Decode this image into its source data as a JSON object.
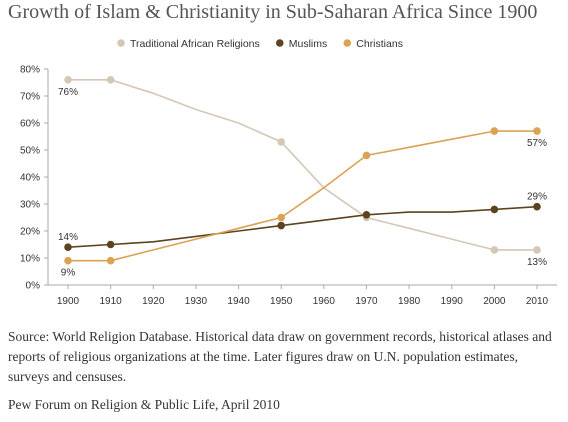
{
  "title": "Growth of Islam & Christianity in Sub-Saharan Africa Since 1900",
  "source": "Source: World Religion Database. Historical data draw on government records, historical atlases and reports of religious organizations at the time. Later figures draw on U.N. population estimates, surveys and censuses.",
  "credit": "Pew Forum on Religion & Public Life, April 2010",
  "chart_data": {
    "type": "line",
    "title": "Growth of Islam & Christianity in Sub-Saharan Africa Since 1900",
    "xlabel": "",
    "ylabel": "",
    "x_ticks": [
      "1900",
      "1910",
      "1920",
      "1930",
      "1940",
      "1950",
      "1960",
      "1970",
      "1980",
      "1990",
      "2000",
      "2010"
    ],
    "y_ticks": [
      "0%",
      "10%",
      "20%",
      "30%",
      "40%",
      "50%",
      "60%",
      "70%",
      "80%"
    ],
    "xlim": [
      1900,
      2010
    ],
    "ylim": [
      0,
      80
    ],
    "grid": false,
    "legend_position": "top-center",
    "series": [
      {
        "name": "Traditional African Religions",
        "color": "#d4c7b6",
        "x": [
          1900,
          1910,
          1920,
          1930,
          1940,
          1950,
          1960,
          1970,
          1980,
          1990,
          2000,
          2010
        ],
        "values": [
          76,
          76,
          71,
          65,
          60,
          53,
          36,
          25,
          21,
          17,
          13,
          13
        ],
        "markers": [
          1900,
          1910,
          1950,
          1970,
          2000,
          2010
        ]
      },
      {
        "name": "Muslims",
        "color": "#5e4320",
        "x": [
          1900,
          1910,
          1920,
          1930,
          1940,
          1950,
          1960,
          1970,
          1980,
          1990,
          2000,
          2010
        ],
        "values": [
          14,
          15,
          16,
          18,
          20,
          22,
          24,
          26,
          27,
          27,
          28,
          29
        ],
        "markers": [
          1900,
          1910,
          1950,
          1970,
          2000,
          2010
        ]
      },
      {
        "name": "Christians",
        "color": "#dba253",
        "x": [
          1900,
          1910,
          1920,
          1930,
          1940,
          1950,
          1960,
          1970,
          1980,
          1990,
          2000,
          2010
        ],
        "values": [
          9,
          9,
          13,
          17,
          21,
          25,
          36,
          48,
          51,
          54,
          57,
          57
        ],
        "markers": [
          1900,
          1910,
          1950,
          1970,
          2000,
          2010
        ]
      }
    ],
    "data_labels": [
      {
        "text": "76%",
        "series": "Traditional African Religions",
        "x": 1900,
        "value": 76,
        "position": "below"
      },
      {
        "text": "14%",
        "series": "Muslims",
        "x": 1900,
        "value": 14,
        "position": "above"
      },
      {
        "text": "9%",
        "series": "Christians",
        "x": 1900,
        "value": 9,
        "position": "below"
      },
      {
        "text": "57%",
        "series": "Christians",
        "x": 2010,
        "value": 57,
        "position": "below"
      },
      {
        "text": "29%",
        "series": "Muslims",
        "x": 2010,
        "value": 29,
        "position": "above"
      },
      {
        "text": "13%",
        "series": "Traditional African Religions",
        "x": 2010,
        "value": 13,
        "position": "below"
      }
    ]
  }
}
